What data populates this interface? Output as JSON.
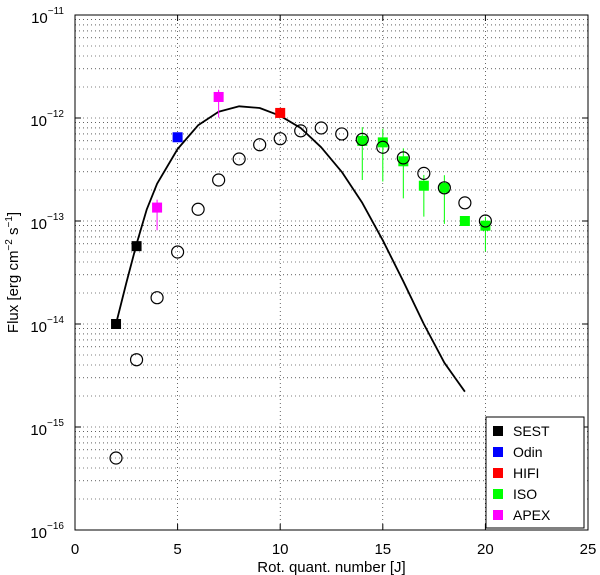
{
  "chart_data": {
    "type": "scatter",
    "xlabel": "Rot. quant. number [J]",
    "ylabel": "Flux [erg cm",
    "ylabel_parts": [
      "Flux [erg cm",
      "−2",
      " s",
      "−1",
      "]"
    ],
    "x_ticks": [
      "0",
      "5",
      "10",
      "15",
      "20",
      "25"
    ],
    "y_ticks": [
      {
        "base": "10",
        "exp": "−16"
      },
      {
        "base": "10",
        "exp": "−15"
      },
      {
        "base": "10",
        "exp": "−14"
      },
      {
        "base": "10",
        "exp": "−13"
      },
      {
        "base": "10",
        "exp": "−12"
      },
      {
        "base": "10",
        "exp": "−11"
      }
    ],
    "xlim": [
      0,
      25
    ],
    "ylim": [
      1e-16,
      1e-11
    ],
    "yscale": "log",
    "grid": true,
    "legend_position": "bottom-right",
    "model_points": [
      {
        "x": 2,
        "y": 5e-16
      },
      {
        "x": 3,
        "y": 4.5e-15
      },
      {
        "x": 4,
        "y": 1.8e-14
      },
      {
        "x": 5,
        "y": 5e-14
      },
      {
        "x": 6,
        "y": 1.3e-13
      },
      {
        "x": 7,
        "y": 2.5e-13
      },
      {
        "x": 8,
        "y": 4e-13
      },
      {
        "x": 9,
        "y": 5.5e-13
      },
      {
        "x": 10,
        "y": 6.3e-13
      },
      {
        "x": 11,
        "y": 7.5e-13
      },
      {
        "x": 12,
        "y": 8e-13
      },
      {
        "x": 13,
        "y": 7e-13
      },
      {
        "x": 14,
        "y": 6.2e-13
      },
      {
        "x": 15,
        "y": 5.2e-13
      },
      {
        "x": 16,
        "y": 4.1e-13
      },
      {
        "x": 17,
        "y": 2.9e-13
      },
      {
        "x": 18,
        "y": 2.1e-13
      },
      {
        "x": 19,
        "y": 1.5e-13
      },
      {
        "x": 20,
        "y": 1e-13
      }
    ],
    "curve": [
      {
        "x": 2.0,
        "y": 1e-14
      },
      {
        "x": 2.5,
        "y": 2.5e-14
      },
      {
        "x": 3.0,
        "y": 6e-14
      },
      {
        "x": 3.5,
        "y": 1.3e-13
      },
      {
        "x": 4.0,
        "y": 2.3e-13
      },
      {
        "x": 5.0,
        "y": 5e-13
      },
      {
        "x": 6.0,
        "y": 8.5e-13
      },
      {
        "x": 7.0,
        "y": 1.15e-12
      },
      {
        "x": 8.0,
        "y": 1.3e-12
      },
      {
        "x": 9.0,
        "y": 1.25e-12
      },
      {
        "x": 10.0,
        "y": 1.05e-12
      },
      {
        "x": 11.0,
        "y": 8e-13
      },
      {
        "x": 12.0,
        "y": 5.2e-13
      },
      {
        "x": 13.0,
        "y": 3e-13
      },
      {
        "x": 14.0,
        "y": 1.5e-13
      },
      {
        "x": 15.0,
        "y": 6.5e-14
      },
      {
        "x": 16.0,
        "y": 2.6e-14
      },
      {
        "x": 17.0,
        "y": 1e-14
      },
      {
        "x": 18.0,
        "y": 4.2e-15
      },
      {
        "x": 19.0,
        "y": 2.2e-15
      }
    ],
    "series": [
      {
        "name": "SEST",
        "color": "#000000",
        "points": [
          {
            "x": 2,
            "y": 1e-14
          },
          {
            "x": 3,
            "y": 5.7e-14
          }
        ]
      },
      {
        "name": "Odin",
        "color": "#0000ff",
        "points": [
          {
            "x": 5,
            "y": 6.5e-13
          }
        ]
      },
      {
        "name": "HIFI",
        "color": "#ff0000",
        "points": [
          {
            "x": 10,
            "y": 1.12e-12
          }
        ]
      },
      {
        "name": "ISO",
        "color": "#00ff00",
        "points": [
          {
            "x": 14,
            "y": 6e-13,
            "err": 0.38
          },
          {
            "x": 15,
            "y": 5.8e-13,
            "err": 0.38
          },
          {
            "x": 16,
            "y": 3.8e-13,
            "err": 0.36
          },
          {
            "x": 17,
            "y": 2.2e-13,
            "err": 0.3
          },
          {
            "x": 18,
            "y": 2.1e-13,
            "err": 0.35
          },
          {
            "x": 19,
            "y": 1e-13,
            "err": 0.0
          },
          {
            "x": 20,
            "y": 9e-14,
            "err": 0.25
          }
        ]
      },
      {
        "name": "APEX",
        "color": "#ff00ff",
        "points": [
          {
            "x": 4,
            "y": 1.35e-13,
            "err": 0.22
          },
          {
            "x": 7,
            "y": 1.6e-12,
            "err": 0.2
          }
        ]
      }
    ]
  }
}
